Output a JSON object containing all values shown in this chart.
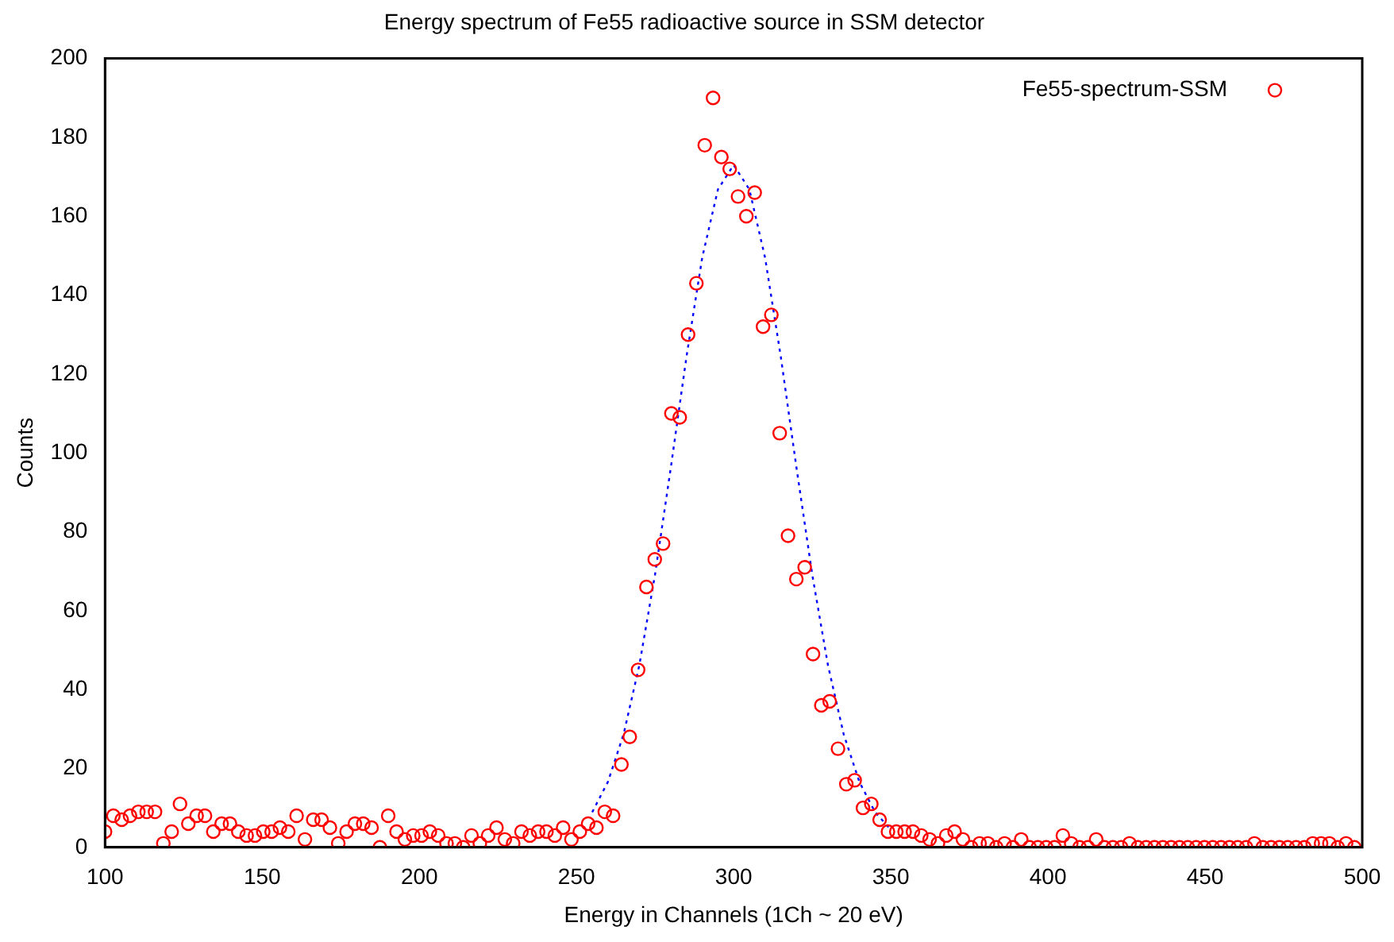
{
  "chart_data": {
    "type": "scatter",
    "title": "Energy spectrum of Fe55 radioactive source in SSM detector",
    "xlabel": "Energy in Channels (1Ch ~ 20 eV)",
    "ylabel": "Counts",
    "xlim": [
      100,
      500
    ],
    "xticks": [
      100,
      150,
      200,
      250,
      300,
      350,
      400,
      450,
      500
    ],
    "ylim": [
      0,
      200
    ],
    "yticks": [
      0,
      20,
      40,
      60,
      80,
      100,
      120,
      140,
      160,
      180,
      200
    ],
    "grid": false,
    "legend": "top right",
    "series": [
      {
        "name": "Fe55-spectrum-SSM",
        "type": "scatter",
        "color": "#ff0000",
        "marker": "circle",
        "x": [
          100,
          102.65,
          105.3,
          107.95,
          110.6,
          113.25,
          115.9,
          118.55,
          121.2,
          123.85,
          126.5,
          129.15,
          131.8,
          134.45,
          137.1,
          139.75,
          142.4,
          145.05,
          147.7,
          150.35,
          153,
          155.65,
          158.3,
          160.95,
          163.6,
          166.25,
          168.9,
          171.55,
          174.2,
          176.85,
          179.5,
          182.15,
          184.8,
          187.45,
          190.1,
          192.75,
          195.4,
          198.05,
          200.7,
          203.35,
          206,
          208.65,
          211.3,
          213.95,
          216.6,
          219.25,
          221.9,
          224.55,
          227.2,
          229.85,
          232.5,
          235.15,
          237.8,
          240.45,
          243.1,
          245.75,
          248.4,
          251.05,
          253.7,
          256.35,
          259,
          261.65,
          264.3,
          266.95,
          269.6,
          272.25,
          274.9,
          277.55,
          280.2,
          282.85,
          285.5,
          288.15,
          290.8,
          293.45,
          296.1,
          298.75,
          301.4,
          304.05,
          306.7,
          309.35,
          312,
          314.65,
          317.3,
          319.95,
          322.6,
          325.25,
          327.9,
          330.55,
          333.2,
          335.85,
          338.5,
          341.15,
          343.8,
          346.45,
          349.1,
          351.75,
          354.4,
          357.05,
          359.7,
          362.35,
          365,
          367.65,
          370.3,
          372.95,
          375.6,
          378.25,
          380.9,
          383.55,
          386.2,
          388.85,
          391.5,
          394.15,
          396.8,
          399.45,
          402.1,
          404.75,
          407.4,
          410.05,
          412.7,
          415.35,
          418,
          420.65,
          423.3,
          425.95,
          428.6,
          431.25,
          433.9,
          436.55,
          439.2,
          441.85,
          444.5,
          447.15,
          449.8,
          452.45,
          455.1,
          457.75,
          460.4,
          463.05,
          465.7,
          468.35,
          471,
          473.65,
          476.3,
          478.95,
          481.6,
          484.25,
          486.9,
          489.55,
          492.2,
          494.85,
          497.5
        ],
        "values": [
          4,
          8,
          7,
          8,
          9,
          9,
          9,
          1,
          4,
          11,
          6,
          8,
          8,
          4,
          6,
          6,
          4,
          3,
          3,
          4,
          4,
          5,
          4,
          8,
          2,
          7,
          7,
          5,
          1,
          4,
          6,
          6,
          5,
          0,
          8,
          4,
          2,
          3,
          3,
          4,
          3,
          1,
          1,
          0,
          3,
          1,
          3,
          5,
          2,
          1,
          4,
          3,
          4,
          4,
          3,
          5,
          2,
          4,
          6,
          5,
          9,
          8,
          21,
          28,
          45,
          66,
          73,
          77,
          110,
          109,
          130,
          143,
          178,
          190,
          175,
          172,
          165,
          160,
          166,
          132,
          135,
          105,
          79,
          68,
          71,
          49,
          36,
          37,
          25,
          16,
          17,
          10,
          11,
          7,
          4,
          4,
          4,
          4,
          3,
          2,
          1,
          3,
          4,
          2,
          0,
          1,
          1,
          0,
          1,
          0,
          2,
          0,
          0,
          0,
          0,
          3,
          1,
          0,
          0,
          2,
          0,
          0,
          0,
          1,
          0,
          0,
          0,
          0,
          0,
          0,
          0,
          0,
          0,
          0,
          0,
          0,
          0,
          0,
          1,
          0,
          0,
          0,
          0,
          0,
          0,
          1,
          1,
          1,
          0,
          1,
          0
        ]
      },
      {
        "type": "line",
        "color": "#0000ff",
        "marker": "none",
        "line_style": "dotted",
        "x": [
          255,
          260,
          265,
          270,
          275,
          280,
          285,
          290,
          295,
          300,
          305,
          310,
          315,
          320,
          325,
          330,
          335,
          340,
          345,
          350
        ],
        "values": [
          8.9,
          16.6,
          28.7,
          46.2,
          69.2,
          96.2,
          124.4,
          149.5,
          166.8,
          173,
          166.8,
          149.5,
          124.4,
          96.2,
          69.2,
          46.2,
          28.7,
          16.6,
          8.9,
          4.5
        ]
      }
    ]
  }
}
